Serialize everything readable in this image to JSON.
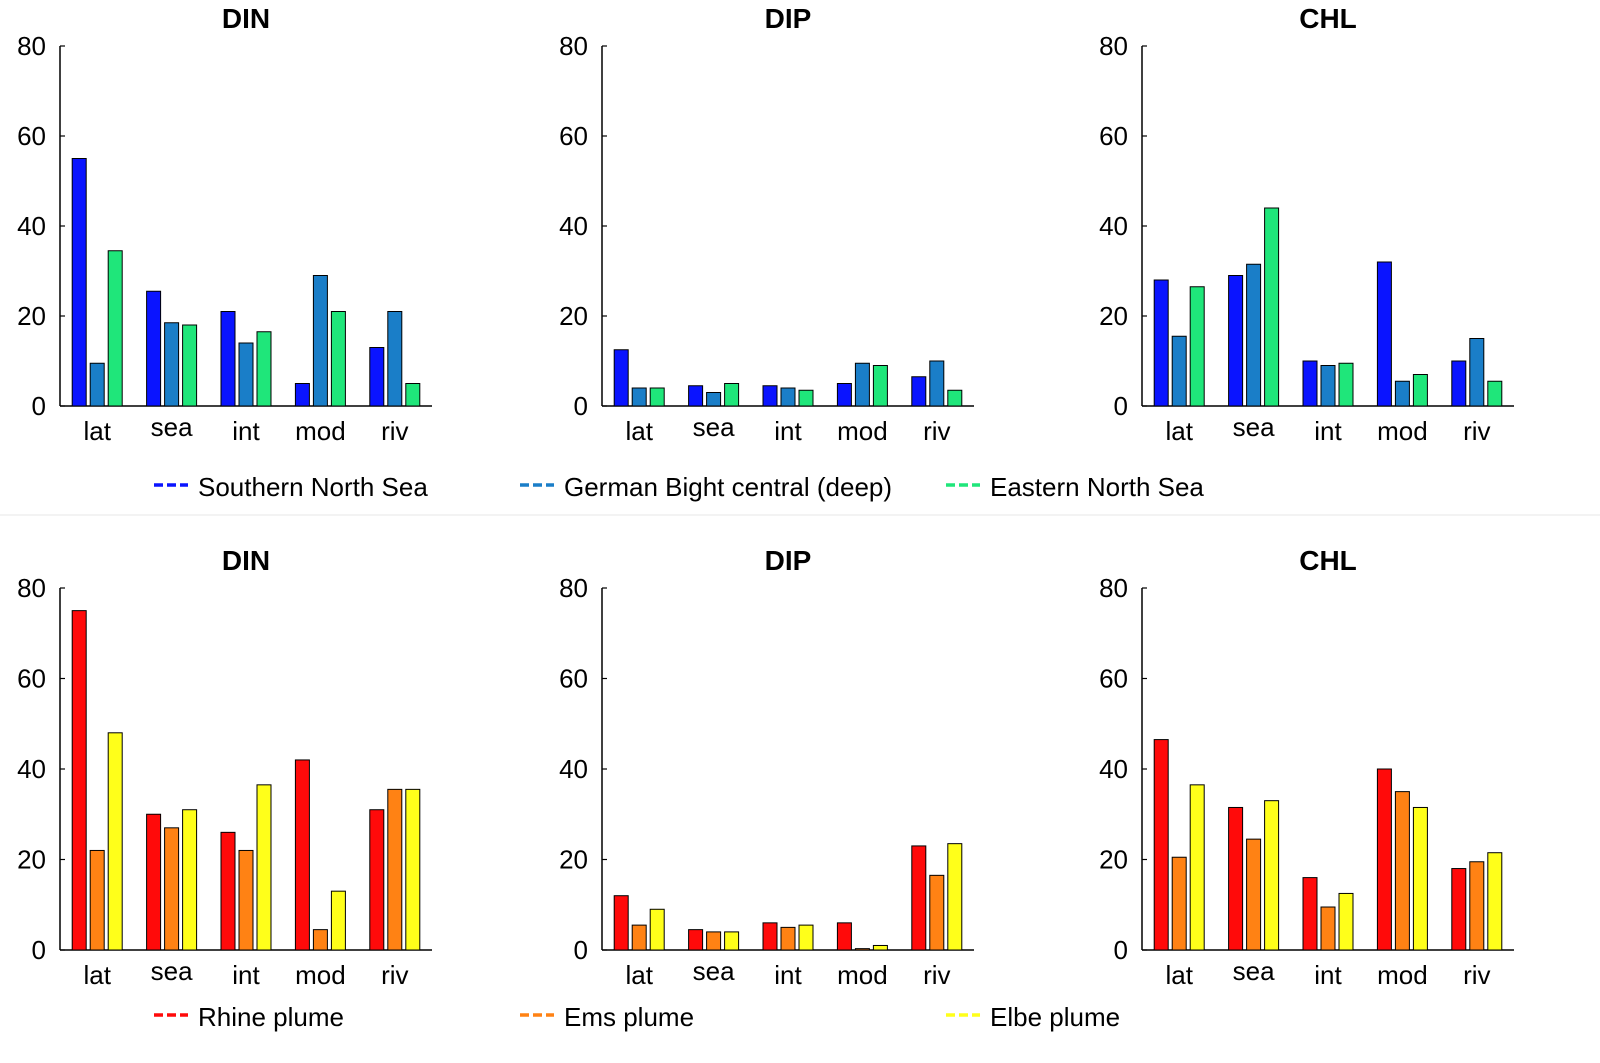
{
  "chart_data": [
    {
      "type": "bar",
      "title": "DIN",
      "categories": [
        "lat",
        "sea",
        "int",
        "mod",
        "riv"
      ],
      "ylim": [
        0,
        80
      ],
      "yticks": [
        "0",
        "20",
        "40",
        "60",
        "80"
      ],
      "series": [
        {
          "name": "Southern North Sea",
          "color": "#0a14ff",
          "values": [
            55,
            25.5,
            21,
            5,
            13
          ]
        },
        {
          "name": "German Bight central (deep)",
          "color": "#1a7ec8",
          "values": [
            9.5,
            18.5,
            14,
            29,
            21
          ]
        },
        {
          "name": "Eastern North Sea",
          "color": "#1fe67a",
          "values": [
            34.5,
            18,
            16.5,
            21,
            5
          ]
        }
      ]
    },
    {
      "type": "bar",
      "title": "DIP",
      "categories": [
        "lat",
        "sea",
        "int",
        "mod",
        "riv"
      ],
      "ylim": [
        0,
        80
      ],
      "yticks": [
        "0",
        "20",
        "40",
        "60",
        "80"
      ],
      "series": [
        {
          "name": "Southern North Sea",
          "color": "#0a14ff",
          "values": [
            12.5,
            4.5,
            4.5,
            5,
            6.5
          ]
        },
        {
          "name": "German Bight central (deep)",
          "color": "#1a7ec8",
          "values": [
            4,
            3,
            4,
            9.5,
            10
          ]
        },
        {
          "name": "Eastern North Sea",
          "color": "#1fe67a",
          "values": [
            4,
            5,
            3.5,
            9,
            3.5
          ]
        }
      ]
    },
    {
      "type": "bar",
      "title": "CHL",
      "categories": [
        "lat",
        "sea",
        "int",
        "mod",
        "riv"
      ],
      "ylim": [
        0,
        80
      ],
      "yticks": [
        "0",
        "20",
        "40",
        "60",
        "80"
      ],
      "series": [
        {
          "name": "Southern North Sea",
          "color": "#0a14ff",
          "values": [
            28,
            29,
            10,
            32,
            10
          ]
        },
        {
          "name": "German Bight central (deep)",
          "color": "#1a7ec8",
          "values": [
            15.5,
            31.5,
            9,
            5.5,
            15
          ]
        },
        {
          "name": "Eastern North Sea",
          "color": "#1fe67a",
          "values": [
            26.5,
            44,
            9.5,
            7,
            5.5
          ]
        }
      ]
    },
    {
      "type": "bar",
      "title": "DIN",
      "categories": [
        "lat",
        "sea",
        "int",
        "mod",
        "riv"
      ],
      "ylim": [
        0,
        80
      ],
      "yticks": [
        "0",
        "20",
        "40",
        "60",
        "80"
      ],
      "series": [
        {
          "name": "Rhine plume",
          "color": "#ff0a0a",
          "values": [
            75,
            30,
            26,
            42,
            31
          ]
        },
        {
          "name": "Ems plume",
          "color": "#ff8214",
          "values": [
            22,
            27,
            22,
            4.5,
            35.5
          ]
        },
        {
          "name": "Elbe plume",
          "color": "#ffff1a",
          "values": [
            48,
            31,
            36.5,
            13,
            35.5
          ]
        }
      ]
    },
    {
      "type": "bar",
      "title": "DIP",
      "categories": [
        "lat",
        "sea",
        "int",
        "mod",
        "riv"
      ],
      "ylim": [
        0,
        80
      ],
      "yticks": [
        "0",
        "20",
        "40",
        "60",
        "80"
      ],
      "series": [
        {
          "name": "Rhine plume",
          "color": "#ff0a0a",
          "values": [
            12,
            4.5,
            6,
            6,
            23
          ]
        },
        {
          "name": "Ems plume",
          "color": "#ff8214",
          "values": [
            5.5,
            4,
            5,
            0.3,
            16.5
          ]
        },
        {
          "name": "Elbe plume",
          "color": "#ffff1a",
          "values": [
            9,
            4,
            5.5,
            1,
            23.5
          ]
        }
      ]
    },
    {
      "type": "bar",
      "title": "CHL",
      "categories": [
        "lat",
        "sea",
        "int",
        "mod",
        "riv"
      ],
      "ylim": [
        0,
        80
      ],
      "yticks": [
        "0",
        "20",
        "40",
        "60",
        "80"
      ],
      "series": [
        {
          "name": "Rhine plume",
          "color": "#ff0a0a",
          "values": [
            46.5,
            31.5,
            16,
            40,
            18
          ]
        },
        {
          "name": "Ems plume",
          "color": "#ff8214",
          "values": [
            20.5,
            24.5,
            9.5,
            35,
            19.5
          ]
        },
        {
          "name": "Elbe plume",
          "color": "#ffff1a",
          "values": [
            36.5,
            33,
            12.5,
            31.5,
            21.5
          ]
        }
      ]
    }
  ],
  "legends": [
    {
      "entries": [
        {
          "label": "Southern North Sea",
          "color": "#0a14ff"
        },
        {
          "label": "German Bight central (deep)",
          "color": "#1a7ec8"
        },
        {
          "label": "Eastern North Sea",
          "color": "#1fe67a"
        }
      ]
    },
    {
      "entries": [
        {
          "label": "Rhine plume",
          "color": "#ff0a0a"
        },
        {
          "label": "Ems plume",
          "color": "#ff8214"
        },
        {
          "label": "Elbe plume",
          "color": "#ffff1a"
        }
      ]
    }
  ]
}
